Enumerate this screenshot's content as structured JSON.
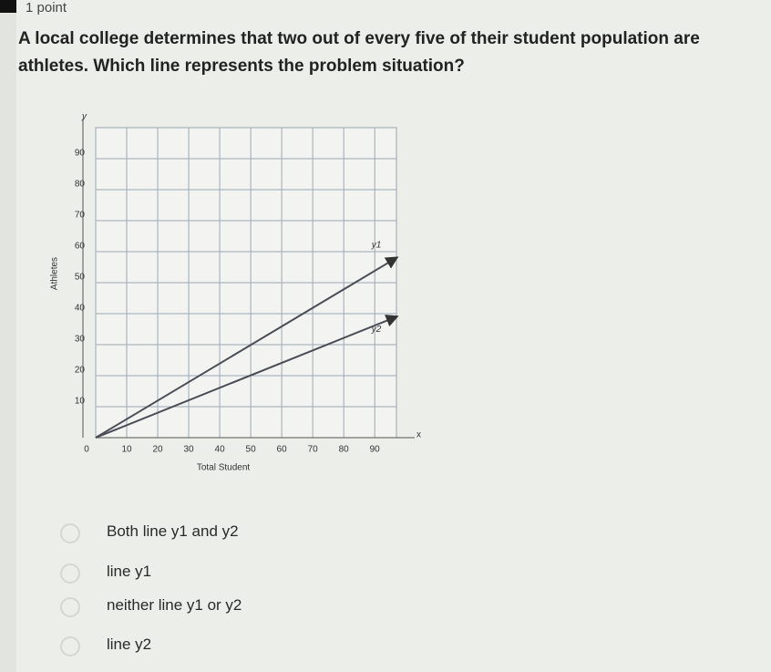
{
  "header": {
    "points": "1 point"
  },
  "question": "A local college determines that two out of every five of their student population are athletes. Which line represents the problem situation?",
  "chart_data": {
    "type": "line",
    "x_label": "Total Student",
    "y_label": "Athletes",
    "x_axis_name": "x",
    "y_axis_name": "y",
    "xlim": [
      0,
      97
    ],
    "ylim": [
      0,
      100
    ],
    "xticks": [
      0,
      10,
      20,
      30,
      40,
      50,
      60,
      70,
      80,
      90
    ],
    "yticks": [
      10,
      20,
      30,
      40,
      50,
      60,
      70,
      80,
      90
    ],
    "grid": true,
    "series": [
      {
        "name": "y1",
        "color": "#4a4d55",
        "x": [
          0,
          97
        ],
        "values": [
          0,
          58
        ]
      },
      {
        "name": "y2",
        "color": "#4a4d55",
        "x": [
          0,
          97
        ],
        "values": [
          0,
          39
        ]
      }
    ]
  },
  "options": [
    "Both line y1 and y2",
    "line y1",
    "neither line y1 or y2",
    "line y2"
  ]
}
